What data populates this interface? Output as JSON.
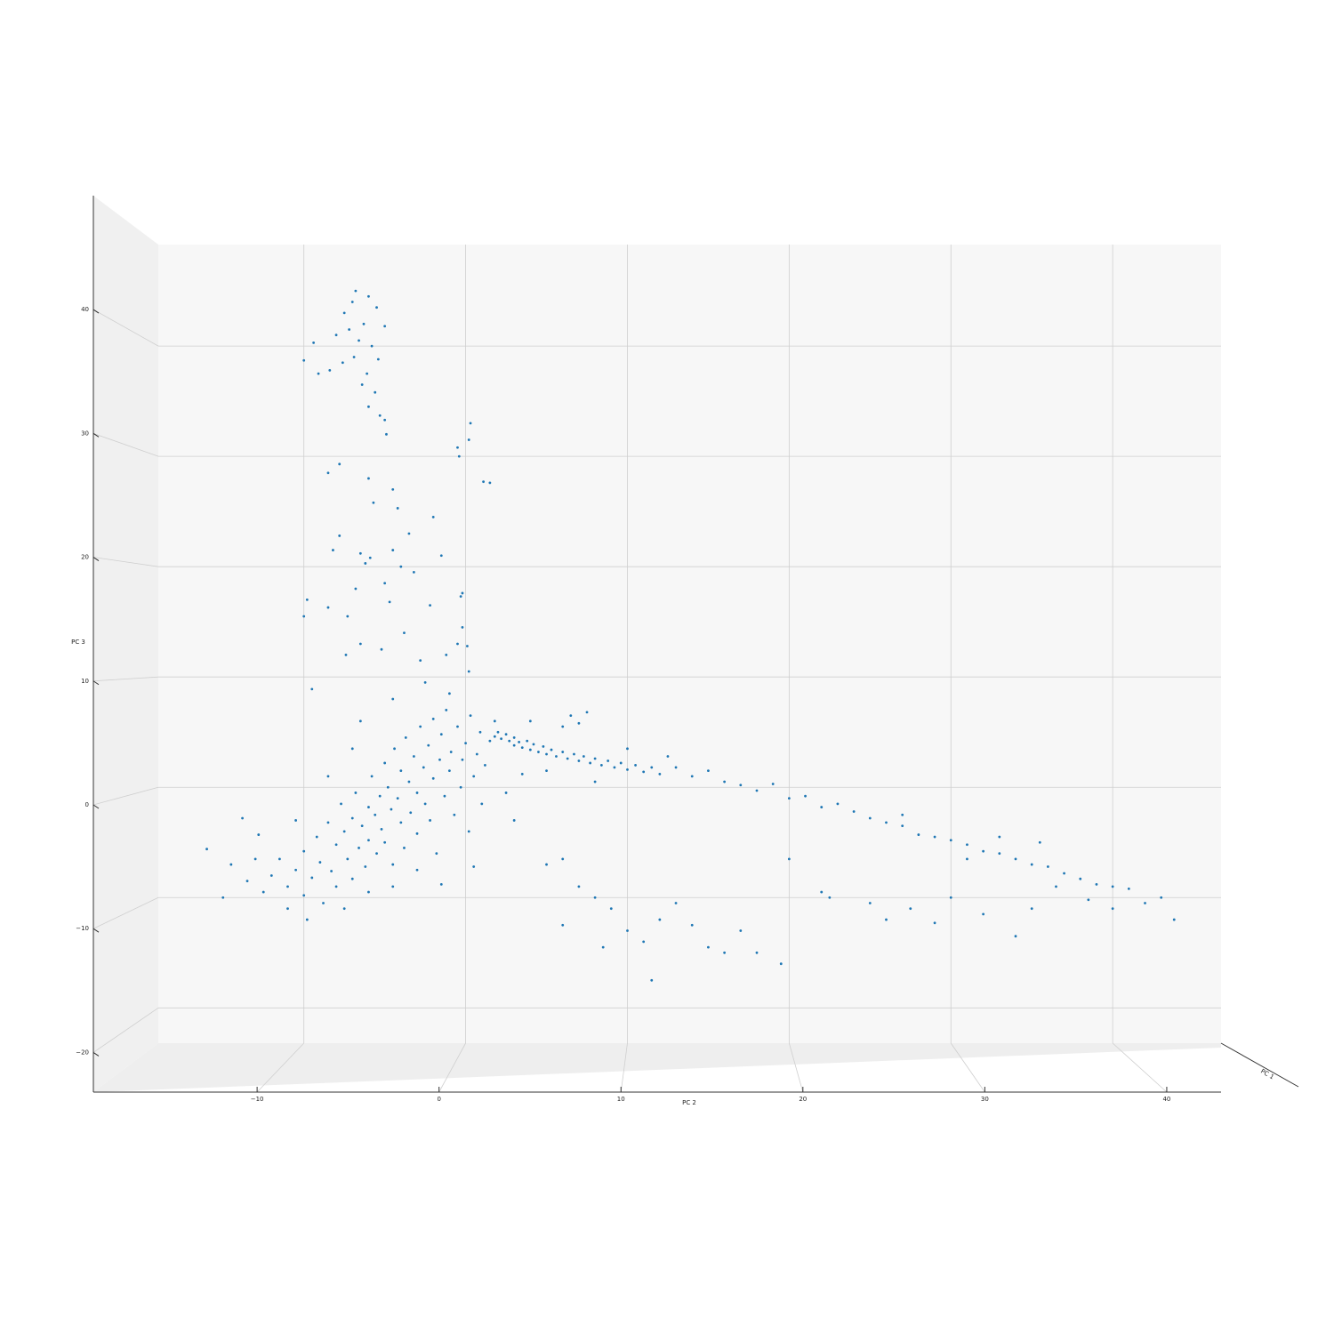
{
  "chart_data": {
    "type": "scatter",
    "xlabel": "PC 2",
    "ylabel": "PC 3",
    "zlabel": "PC 1",
    "color": "#1f77b4",
    "grid": true,
    "xlim": [
      -19,
      46.7
    ],
    "ylim": [
      -23.2,
      49.2
    ],
    "xticks": [
      {
        "value": -10,
        "label": "−10"
      },
      0,
      10,
      20,
      30,
      40
    ],
    "yticks": [
      {
        "value": -20,
        "label": "−20"
      },
      {
        "value": -10,
        "label": "−10"
      },
      0,
      10,
      20,
      30,
      40
    ],
    "x": [
      -7,
      -7.5,
      -6.8,
      -6,
      -5.5,
      -6.3,
      -7.2,
      -8,
      -6.6,
      -5.8,
      -5,
      -6.9,
      -7.6,
      -5.4,
      -6.1,
      -9.4,
      -10,
      -9.1,
      -8.4,
      -6.4,
      -5.6,
      -6,
      -5.3,
      -5,
      -4.9,
      -8.5,
      -7.8,
      -6,
      -5.7,
      -4.5,
      -4.2,
      -7.8,
      -8.2,
      -6.5,
      -6.2,
      -5.9,
      -4.5,
      -4,
      -3.5,
      -6.8,
      -5,
      -3.2,
      -9.8,
      -10,
      -8.5,
      -7.3,
      -4.7,
      -2.2,
      -1.5,
      -2,
      -0.3,
      -0.2,
      -3.8,
      -6.5,
      -5.2,
      -2.8,
      -1.2,
      -0.5,
      0.2,
      -7.4,
      0.3,
      0.2,
      -0.4,
      -0.5,
      1.1,
      1.5,
      -0.2,
      0.1,
      -12,
      -11.5,
      -11,
      -10.5,
      -10,
      -10,
      -9.5,
      -9.2,
      -9,
      -8.8,
      -8.5,
      -8.3,
      -8,
      -8,
      -7.7,
      -7.5,
      -7.3,
      -7,
      -7,
      -6.8,
      -6.6,
      -6.4,
      -6.2,
      -6,
      -6,
      -5.8,
      -5.6,
      -5.5,
      -5.3,
      -5.2,
      -5,
      -5,
      -4.8,
      -4.6,
      -4.5,
      -4.4,
      -4.2,
      -4,
      -4,
      -3.8,
      -3.7,
      -3.5,
      -3.4,
      -3.2,
      -3,
      -3,
      -2.8,
      -2.6,
      -2.5,
      -2.3,
      -2.2,
      -2,
      -2,
      -1.8,
      -1.6,
      -1.5,
      -1.3,
      -1.2,
      -1,
      -0.9,
      -0.7,
      -0.5,
      -0.3,
      -0.2,
      0,
      0.2,
      0.3,
      0.5,
      0.7,
      0.9,
      1,
      1.2,
      1.5,
      -13,
      -12.5,
      -13.5,
      -11,
      -9.8,
      -7.5,
      -6,
      -4.5,
      -3,
      -1.5,
      0.5,
      -14.5,
      -12.8,
      -10.5,
      -8.5,
      -7,
      -9.5,
      -6.5,
      -4.5,
      -2.5,
      -1,
      1.8,
      2.5,
      3,
      3.5,
      -16,
      -15,
      -13.8,
      1.8,
      2,
      2.2,
      2.5,
      2.7,
      3,
      3,
      3.3,
      3.5,
      3.8,
      4,
      4.2,
      4.5,
      4.8,
      5,
      5.3,
      5.6,
      6,
      6.3,
      6.7,
      7,
      7.3,
      7.7,
      8,
      8.4,
      8.8,
      9.2,
      9.6,
      10,
      10.5,
      11,
      11.5,
      12,
      6,
      6.5,
      7.5,
      7,
      4,
      5,
      8,
      10,
      12.5,
      13,
      14,
      15,
      16,
      17,
      18,
      19,
      20,
      21,
      22,
      23,
      24,
      25,
      26,
      27,
      28,
      29,
      30,
      31,
      32,
      33,
      34,
      35,
      36,
      37,
      38,
      39,
      40,
      41,
      42,
      43,
      43.8,
      35.5,
      38.5,
      33,
      27,
      31,
      36.5,
      40,
      5,
      6,
      7,
      8,
      9,
      10,
      11,
      12,
      14,
      15,
      16,
      18,
      19.5,
      17,
      13,
      20,
      22,
      25,
      27.5,
      30,
      32,
      34,
      22.5,
      26,
      29,
      35,
      11.5,
      8.5,
      6
    ],
    "values": [
      44,
      43,
      45,
      44.5,
      43.5,
      42,
      41.5,
      41,
      40.5,
      40,
      41.8,
      39,
      38.5,
      38.8,
      37.5,
      40.3,
      38.7,
      37.5,
      37.8,
      36.5,
      35.8,
      34.5,
      33.7,
      33.3,
      32,
      28.5,
      29.3,
      28,
      25.8,
      27,
      25.3,
      22.8,
      21.5,
      21.2,
      20.3,
      20.8,
      21.5,
      20,
      23,
      18,
      18.5,
      19.5,
      17,
      15.5,
      16.3,
      15.5,
      16.8,
      16.5,
      21,
      24.5,
      17.3,
      14.5,
      14,
      13,
      12.5,
      11.5,
      12,
      13,
      10.5,
      12,
      33,
      31.5,
      30,
      30.8,
      27.7,
      27.6,
      17.6,
      12.8,
      -8,
      -6.5,
      -9,
      -7.5,
      -5.8,
      -9.8,
      -8.2,
      -4.5,
      -6.8,
      -10.5,
      -3.2,
      -7.6,
      -5.2,
      -9,
      -1.5,
      -4,
      -6.5,
      -8.3,
      -2.8,
      -0.5,
      -5.5,
      -3.5,
      -7.2,
      -1.8,
      -4.8,
      1,
      -2.5,
      -6,
      -0.8,
      -3.8,
      2.2,
      -5,
      0,
      -2,
      -7,
      3.5,
      -1,
      1.5,
      -3.2,
      -5.5,
      4.5,
      0.5,
      -2.3,
      2.8,
      -0.5,
      -4.2,
      5.5,
      1.8,
      -1.5,
      3.8,
      -3,
      0.8,
      6.2,
      -6,
      2.5,
      4.8,
      -0.8,
      7,
      1.5,
      3.2,
      -2.5,
      5.5,
      0,
      2.5,
      4,
      -4,
      6.5,
      1,
      3,
      5,
      -1.5,
      2,
      4.2,
      -6.5,
      -9.5,
      -8.5,
      -11,
      -12,
      -11,
      -9.5,
      -9,
      -7.5,
      -8.8,
      -7.2,
      -7,
      -4.3,
      -3,
      1,
      3.5,
      8.9,
      6,
      8,
      9.5,
      8.5,
      6,
      -0.5,
      -3,
      1.2,
      -5.6,
      -10,
      -2.8,
      4.6,
      5,
      4.4,
      4.8,
      4.2,
      4.5,
      3.8,
      4.1,
      3.6,
      4.2,
      3.4,
      3.9,
      3.2,
      3.7,
      3,
      3.4,
      2.8,
      3.2,
      2.6,
      3,
      2.4,
      2.8,
      2.2,
      2.6,
      2,
      2.4,
      1.8,
      2.2,
      1.6,
      2,
      1.4,
      1.8,
      1.2,
      5.5,
      6.5,
      6.8,
      5.8,
      6,
      1.5,
      0.5,
      3.5,
      2.8,
      1.8,
      1,
      1.5,
      0.5,
      0.2,
      -0.3,
      0.3,
      -1,
      -0.8,
      -1.8,
      -1.5,
      -2.2,
      -2.8,
      -3.2,
      -3.5,
      -4.3,
      -4.5,
      -4.8,
      -5.2,
      -5.8,
      -6,
      -6.5,
      -7,
      -7.2,
      -7.8,
      -8.3,
      -8.8,
      -9,
      -9.2,
      -10.5,
      -10,
      -12,
      -5,
      -10.2,
      -4.5,
      -2.5,
      -6.5,
      -9,
      -11,
      -7,
      -6.5,
      -9,
      -10,
      -11,
      -13,
      -14,
      -12,
      -12.5,
      -14.5,
      -15,
      -15,
      -16,
      -13,
      -10.5,
      -6.5,
      -9.5,
      -10.5,
      -11,
      -10,
      -11.5,
      -13.5,
      -10,
      -12,
      -12.3,
      -11,
      -17.5,
      -14.5,
      -12.5
    ]
  }
}
